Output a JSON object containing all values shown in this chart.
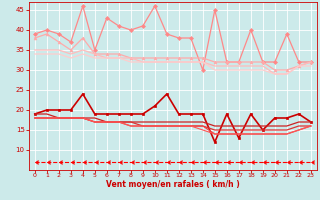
{
  "x": [
    0,
    1,
    2,
    3,
    4,
    5,
    6,
    7,
    8,
    9,
    10,
    11,
    12,
    13,
    14,
    15,
    16,
    17,
    18,
    19,
    20,
    21,
    22,
    23
  ],
  "series": [
    {
      "name": "rafales_spike",
      "color": "#ff8888",
      "lw": 0.9,
      "marker": "D",
      "markersize": 2.0,
      "linestyle": "-",
      "y": [
        39,
        40,
        39,
        37,
        46,
        35,
        43,
        41,
        40,
        41,
        46,
        39,
        38,
        38,
        30,
        45,
        32,
        32,
        40,
        32,
        32,
        39,
        32,
        32
      ]
    },
    {
      "name": "rafales_upper_band",
      "color": "#ffaaaa",
      "lw": 0.9,
      "marker": "^",
      "markersize": 2.0,
      "linestyle": "-",
      "y": [
        38,
        39,
        37,
        35,
        38,
        34,
        34,
        34,
        33,
        33,
        33,
        33,
        33,
        33,
        33,
        32,
        32,
        32,
        32,
        32,
        30,
        30,
        31,
        32
      ]
    },
    {
      "name": "rafales_mid_band",
      "color": "#ffbbbb",
      "lw": 0.9,
      "marker": null,
      "markersize": 0,
      "linestyle": "-",
      "y": [
        35,
        35,
        35,
        34,
        35,
        34,
        33,
        33,
        33,
        32,
        32,
        32,
        32,
        32,
        32,
        31,
        31,
        31,
        31,
        31,
        29,
        29,
        31,
        32
      ]
    },
    {
      "name": "rafales_lower_band",
      "color": "#ffcccc",
      "lw": 0.9,
      "marker": null,
      "markersize": 0,
      "linestyle": "-",
      "y": [
        34,
        34,
        34,
        33,
        34,
        33,
        33,
        33,
        32,
        32,
        32,
        32,
        32,
        32,
        32,
        30,
        30,
        30,
        30,
        30,
        29,
        29,
        31,
        31
      ]
    },
    {
      "name": "vent_moyen_main",
      "color": "#cc0000",
      "lw": 1.2,
      "marker": "s",
      "markersize": 2.0,
      "linestyle": "-",
      "y": [
        19,
        20,
        20,
        20,
        24,
        19,
        19,
        19,
        19,
        19,
        21,
        24,
        19,
        19,
        19,
        12,
        19,
        13,
        19,
        15,
        18,
        18,
        19,
        17
      ]
    },
    {
      "name": "vent_band1",
      "color": "#cc2222",
      "lw": 0.9,
      "marker": null,
      "markersize": 0,
      "linestyle": "-",
      "y": [
        19,
        19,
        18,
        18,
        18,
        18,
        17,
        17,
        17,
        17,
        17,
        17,
        17,
        17,
        17,
        16,
        16,
        16,
        16,
        16,
        16,
        16,
        17,
        17
      ]
    },
    {
      "name": "vent_band2",
      "color": "#dd3333",
      "lw": 0.9,
      "marker": null,
      "markersize": 0,
      "linestyle": "-",
      "y": [
        18,
        18,
        18,
        18,
        18,
        17,
        17,
        17,
        17,
        16,
        16,
        16,
        16,
        16,
        16,
        15,
        15,
        15,
        15,
        15,
        15,
        15,
        16,
        16
      ]
    },
    {
      "name": "vent_band3",
      "color": "#ee4444",
      "lw": 0.9,
      "marker": null,
      "markersize": 0,
      "linestyle": "-",
      "y": [
        18,
        18,
        18,
        18,
        18,
        17,
        17,
        17,
        16,
        16,
        16,
        16,
        16,
        16,
        16,
        14,
        14,
        14,
        14,
        14,
        14,
        14,
        15,
        16
      ]
    },
    {
      "name": "vent_band4",
      "color": "#ff5555",
      "lw": 0.8,
      "marker": null,
      "markersize": 0,
      "linestyle": "-",
      "y": [
        18,
        18,
        18,
        18,
        18,
        17,
        17,
        17,
        16,
        16,
        16,
        16,
        16,
        16,
        15,
        14,
        14,
        14,
        14,
        14,
        14,
        14,
        15,
        16
      ]
    },
    {
      "name": "dashed_bottom",
      "color": "#ff0000",
      "lw": 0.8,
      "marker": 4,
      "markersize": 2.5,
      "linestyle": "--",
      "y": [
        7,
        7,
        7,
        7,
        7,
        7,
        7,
        7,
        7,
        7,
        7,
        7,
        7,
        7,
        7,
        7,
        7,
        7,
        7,
        7,
        7,
        7,
        7,
        7
      ]
    }
  ],
  "ylim": [
    5,
    47
  ],
  "yticks": [
    10,
    15,
    20,
    25,
    30,
    35,
    40,
    45
  ],
  "xticks": [
    0,
    1,
    2,
    3,
    4,
    5,
    6,
    7,
    8,
    9,
    10,
    11,
    12,
    13,
    14,
    15,
    16,
    17,
    18,
    19,
    20,
    21,
    22,
    23
  ],
  "xlabel": "Vent moyen/en rafales ( km/h )",
  "bg_color": "#cceaea",
  "grid_color": "#ffffff",
  "tick_color": "#cc0000",
  "label_color": "#cc0000"
}
